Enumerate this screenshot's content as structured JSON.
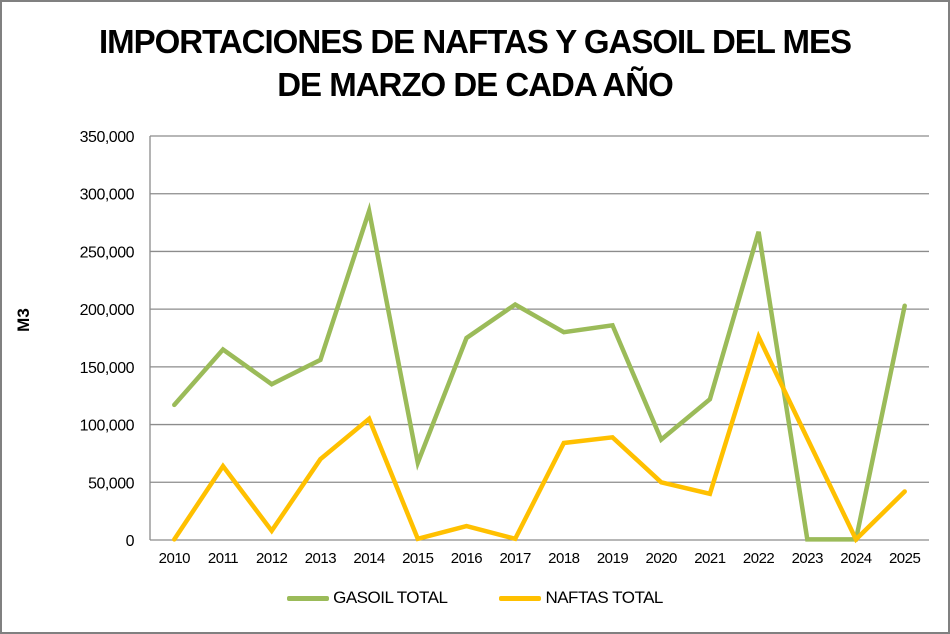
{
  "page": {
    "title_line1": "IMPORTACIONES DE NAFTAS Y GASOIL DEL MES",
    "title_line2": "DE MARZO DE CADA AÑO"
  },
  "chart_data": {
    "type": "line",
    "title": "IMPORTACIONES DE NAFTAS Y GASOIL DEL MES DE MARZO DE CADA AÑO",
    "xlabel": "",
    "ylabel": "M3",
    "ylim": [
      0,
      350000
    ],
    "y_tick_step": 50000,
    "grid": true,
    "legend_position": "bottom",
    "categories": [
      "2010",
      "2011",
      "2012",
      "2013",
      "2014",
      "2015",
      "2016",
      "2017",
      "2018",
      "2019",
      "2020",
      "2021",
      "2022",
      "2023",
      "2024",
      "2025"
    ],
    "series": [
      {
        "name": "GASOIL TOTAL",
        "color": "#9BBB59",
        "values": [
          117000,
          165000,
          135000,
          156000,
          285000,
          67000,
          175000,
          204000,
          180000,
          186000,
          87000,
          122000,
          267000,
          500,
          500,
          203000
        ]
      },
      {
        "name": "NAFTAS TOTAL",
        "color": "#FFC000",
        "values": [
          500,
          64000,
          8000,
          70000,
          105000,
          1000,
          12000,
          1000,
          84000,
          89000,
          50000,
          40000,
          176000,
          88000,
          500,
          42000
        ]
      }
    ],
    "axis_color": "#8C8C8C",
    "tick_label_color": "#000000"
  }
}
